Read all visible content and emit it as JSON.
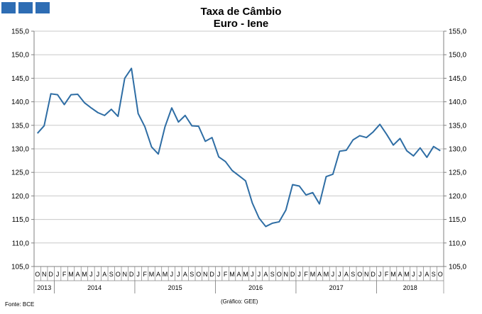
{
  "logo": {
    "color": "#2e6db4"
  },
  "title_line1": "Taxa de Câmbio",
  "title_line2": "Euro - Iene",
  "source_note": "Fonte: BCE",
  "credit_note": "(Gráfico: GEE)",
  "chart_data": {
    "type": "line",
    "title": "Taxa de Câmbio Euro - Iene",
    "xlabel": "",
    "ylabel": "",
    "ylim": [
      105,
      155
    ],
    "yticks": [
      "105,0",
      "110,0",
      "115,0",
      "120,0",
      "125,0",
      "130,0",
      "135,0",
      "140,0",
      "145,0",
      "150,0",
      "155,0"
    ],
    "ytick_values": [
      105,
      110,
      115,
      120,
      125,
      130,
      135,
      140,
      145,
      150,
      155
    ],
    "grid": "horizontal",
    "dual_y_axis": true,
    "line_color": "#2e6da4",
    "x": [
      "O",
      "N",
      "D",
      "J",
      "F",
      "M",
      "A",
      "M",
      "J",
      "J",
      "A",
      "S",
      "O",
      "N",
      "D",
      "J",
      "F",
      "M",
      "A",
      "M",
      "J",
      "J",
      "A",
      "S",
      "O",
      "N",
      "D",
      "J",
      "F",
      "M",
      "A",
      "M",
      "J",
      "J",
      "A",
      "S",
      "O",
      "N",
      "D",
      "J",
      "F",
      "M",
      "A",
      "M",
      "J",
      "J",
      "A",
      "S",
      "O",
      "N",
      "D",
      "J",
      "F",
      "M",
      "A",
      "M",
      "J",
      "J",
      "A",
      "S",
      "O"
    ],
    "years": [
      {
        "label": "2013",
        "start": 0,
        "end": 2
      },
      {
        "label": "2014",
        "start": 3,
        "end": 14
      },
      {
        "label": "2015",
        "start": 15,
        "end": 26
      },
      {
        "label": "2016",
        "start": 27,
        "end": 38
      },
      {
        "label": "2017",
        "start": 39,
        "end": 50
      },
      {
        "label": "2018",
        "start": 51,
        "end": 60
      }
    ],
    "series": [
      {
        "values": [
          133.3,
          134.9,
          141.7,
          141.5,
          139.4,
          141.5,
          141.6,
          139.8,
          138.7,
          137.7,
          137.1,
          138.4,
          136.9,
          145.0,
          147.1,
          137.5,
          134.7,
          130.4,
          128.9,
          134.7,
          138.7,
          135.7,
          137.1,
          134.9,
          134.8,
          131.6,
          132.4,
          128.3,
          127.3,
          125.4,
          124.3,
          123.2,
          118.5,
          115.3,
          113.5,
          114.2,
          114.5,
          117.0,
          122.4,
          122.1,
          120.2,
          120.7,
          118.3,
          124.1,
          124.6,
          129.5,
          129.7,
          131.9,
          132.8,
          132.4,
          133.6,
          135.2,
          133.1,
          130.8,
          132.2,
          129.6,
          128.5,
          130.2,
          128.2,
          130.5,
          129.6
        ]
      }
    ]
  }
}
